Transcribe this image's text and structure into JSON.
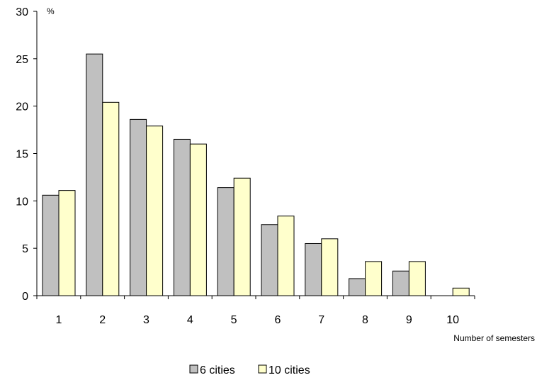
{
  "chart_data": {
    "type": "bar",
    "title": "",
    "ylabel": "%",
    "xlabel": "Number of semesters",
    "ylim": [
      0,
      30
    ],
    "yticks": [
      0,
      5,
      10,
      15,
      20,
      25,
      30
    ],
    "categories": [
      "1",
      "2",
      "3",
      "4",
      "5",
      "6",
      "7",
      "8",
      "9",
      "10"
    ],
    "series": [
      {
        "name": "6 cities",
        "color": "#c0c0c0",
        "values": [
          10.6,
          25.5,
          18.6,
          16.5,
          11.4,
          7.5,
          5.5,
          1.8,
          2.6,
          null
        ]
      },
      {
        "name": "10 cities",
        "color": "#ffffcc",
        "values": [
          11.1,
          20.4,
          17.9,
          16.0,
          12.4,
          8.4,
          6.0,
          3.6,
          3.6,
          0.8
        ]
      }
    ],
    "legend_position": "bottom-center",
    "grid": false
  }
}
